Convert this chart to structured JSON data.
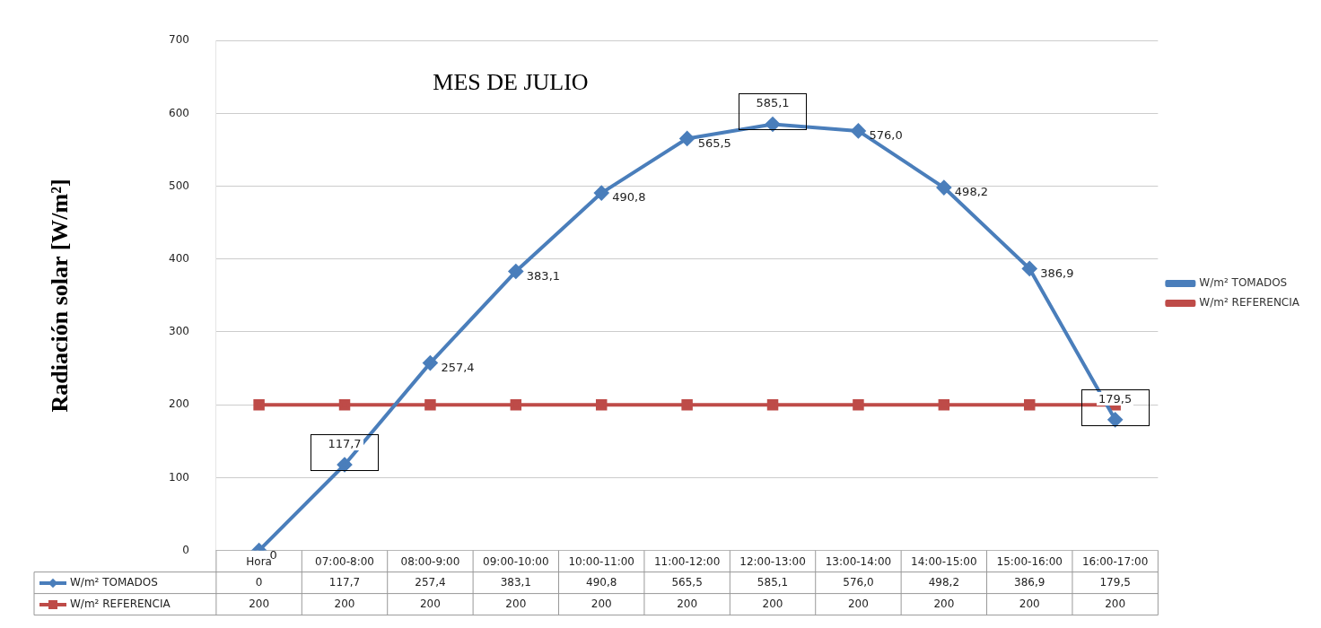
{
  "chart_data": {
    "type": "line",
    "title": "MES DE JULIO",
    "ylabel": "Radiación solar [W/m²]",
    "categories": [
      "Hora",
      "07:00-8:00",
      "08:00-9:00",
      "09:00-10:00",
      "10:00-11:00",
      "11:00-12:00",
      "12:00-13:00",
      "13:00-14:00",
      "14:00-15:00",
      "15:00-16:00",
      "16:00-17:00"
    ],
    "series": [
      {
        "name": "W/m² TOMADOS",
        "color": "#4a7ebb",
        "marker": "diamond",
        "data_labels": true,
        "values": [
          0,
          117.7,
          257.4,
          383.1,
          490.8,
          565.5,
          585.1,
          576.0,
          498.2,
          386.9,
          179.5
        ],
        "value_labels": [
          "0",
          "117,7",
          "257,4",
          "383,1",
          "490,8",
          "565,5",
          "585,1",
          "576,0",
          "498,2",
          "386,9",
          "179,5"
        ]
      },
      {
        "name": "W/m² REFERENCIA",
        "color": "#be4b48",
        "marker": "square",
        "values": [
          200,
          200,
          200,
          200,
          200,
          200,
          200,
          200,
          200,
          200,
          200
        ],
        "value_labels": [
          "200",
          "200",
          "200",
          "200",
          "200",
          "200",
          "200",
          "200",
          "200",
          "200",
          "200"
        ]
      }
    ],
    "ylim": [
      0,
      700
    ],
    "yticks": [
      0,
      100,
      200,
      300,
      400,
      500,
      600,
      700
    ],
    "grid": "y",
    "legend": "right",
    "line_style": "solid",
    "annotations": [
      {
        "text": "117,7",
        "x": "07:00-8:00",
        "y": 117.7
      },
      {
        "text": "585,1",
        "x": "12:00-13:00",
        "y": 585.1
      },
      {
        "text": "179,5",
        "x": "16:00-17:00",
        "y": 179.5
      }
    ]
  }
}
